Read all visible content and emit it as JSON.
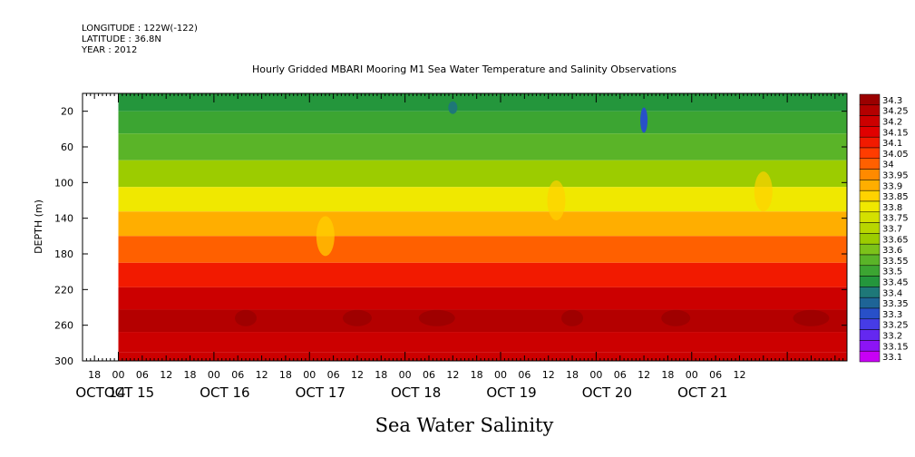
{
  "header": {
    "lines": [
      "LONGITUDE : 122W(-122)",
      "LATITUDE : 36.8N",
      "YEAR : 2012"
    ]
  },
  "chart_data": {
    "type": "heatmap",
    "title": "Hourly Gridded MBARI Mooring M1 Sea Water Temperature and Salinity Observations",
    "variable_label": "Sea Water Salinity",
    "xlabel": "",
    "ylabel": "DEPTH (m)",
    "x_hour_labels": [
      "18",
      "00",
      "06",
      "12",
      "18",
      "00",
      "06",
      "12",
      "18",
      "00",
      "06",
      "12",
      "18",
      "00",
      "06",
      "12",
      "18",
      "00",
      "06",
      "12",
      "18",
      "00",
      "06",
      "12",
      "18",
      "00",
      "06",
      "12"
    ],
    "x_day_labels": [
      "OCT 14",
      "OCT 15",
      "OCT 16",
      "OCT 17",
      "OCT 18",
      "OCT 19",
      "OCT 20",
      "OCT 21"
    ],
    "y_ticks": [
      "20",
      "60",
      "100",
      "140",
      "180",
      "220",
      "260",
      "300"
    ],
    "ylim": [
      300,
      0
    ],
    "x_range_hours": [
      15,
      207
    ],
    "data_start_hour": 24,
    "colorbar": {
      "levels": [
        "34.3",
        "34.25",
        "34.2",
        "34.15",
        "34.1",
        "34.05",
        "34",
        "33.95",
        "33.9",
        "33.85",
        "33.8",
        "33.75",
        "33.7",
        "33.65",
        "33.6",
        "33.55",
        "33.5",
        "33.45",
        "33.4",
        "33.35",
        "33.3",
        "33.25",
        "33.2",
        "33.15",
        "33.1"
      ],
      "colors": [
        "#9b0000",
        "#b40000",
        "#cc0000",
        "#e10000",
        "#f21a00",
        "#ff3c00",
        "#ff6000",
        "#ff8a00",
        "#ffae00",
        "#ffd200",
        "#f0e800",
        "#d4e000",
        "#b8d600",
        "#9ccc00",
        "#7cc21a",
        "#5ab428",
        "#3ca532",
        "#24963c",
        "#1e7878",
        "#1e6496",
        "#2850c8",
        "#463ce6",
        "#6428f0",
        "#8c14f5",
        "#c800f5"
      ]
    },
    "data_rows": [
      {
        "depth": 10,
        "value": 33.45
      },
      {
        "depth": 30,
        "value": 33.5
      },
      {
        "depth": 60,
        "value": 33.55
      },
      {
        "depth": 90,
        "value": 33.65
      },
      {
        "depth": 120,
        "value": 33.8
      },
      {
        "depth": 145,
        "value": 33.9
      },
      {
        "depth": 175,
        "value": 34.0
      },
      {
        "depth": 205,
        "value": 34.1
      },
      {
        "depth": 230,
        "value": 34.2
      },
      {
        "depth": 255,
        "value": 34.25
      },
      {
        "depth": 280,
        "value": 34.2
      },
      {
        "depth": 300,
        "value": 34.2
      }
    ]
  }
}
